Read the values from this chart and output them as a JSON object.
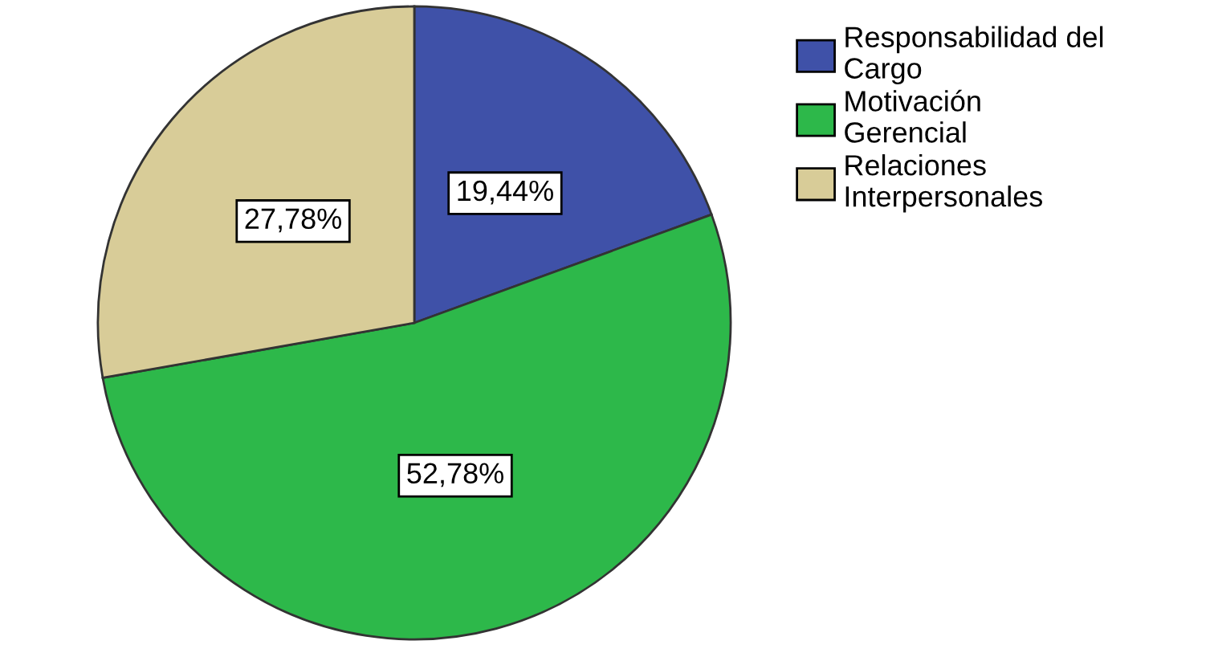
{
  "chart_data": {
    "type": "pie",
    "categories": [
      "Responsabilidad del\nCargo",
      "Motivación\nGerencial",
      "Relaciones\nInterpersonales"
    ],
    "values": [
      19.44,
      52.78,
      27.78
    ],
    "colors": [
      "#3f51a8",
      "#2db84a",
      "#d8cc98"
    ],
    "value_labels": [
      "19,44%",
      "52,78%",
      "27,78%"
    ],
    "legend": "top right"
  }
}
